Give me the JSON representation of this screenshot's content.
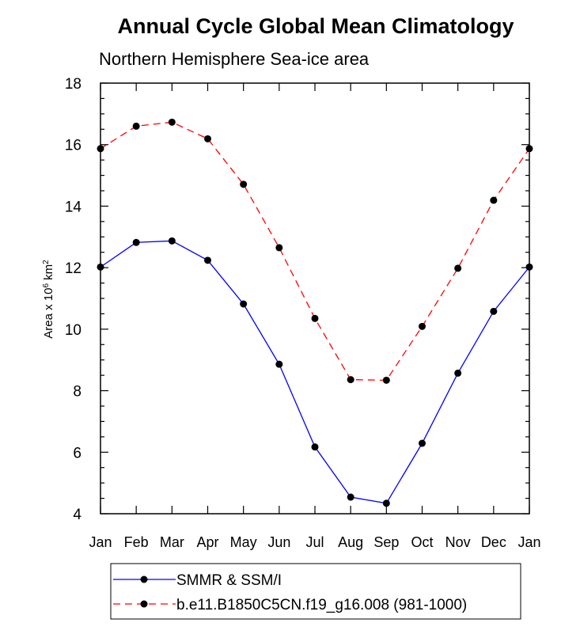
{
  "chart_data": {
    "type": "line",
    "title": "Annual Cycle Global Mean Climatology",
    "subtitle": "Northern Hemisphere Sea-ice area",
    "ylabel_prefix": "Area x 10",
    "ylabel_exp1": "6",
    "ylabel_unit": " km",
    "ylabel_exp2": "2",
    "xlabel": "",
    "categories": [
      "Jan",
      "Feb",
      "Mar",
      "Apr",
      "May",
      "Jun",
      "Jul",
      "Aug",
      "Sep",
      "Oct",
      "Nov",
      "Dec",
      "Jan"
    ],
    "ylim": [
      4,
      18
    ],
    "yticks": [
      4,
      6,
      8,
      10,
      12,
      14,
      16,
      18
    ],
    "series": [
      {
        "name": "SMMR & SSM/I",
        "color": "#0000ff",
        "dash": "solid",
        "values": [
          12.02,
          12.82,
          12.87,
          12.24,
          10.82,
          8.86,
          6.17,
          4.54,
          4.34,
          6.29,
          8.57,
          10.58,
          12.02
        ]
      },
      {
        "name": "b.e11.B1850C5CN.f19_g16.008 (981-1000)",
        "color": "#ff0000",
        "dash": "dashed",
        "values": [
          15.87,
          16.6,
          16.73,
          16.19,
          14.71,
          12.65,
          10.35,
          8.36,
          8.34,
          10.09,
          11.98,
          14.19,
          15.87
        ]
      }
    ],
    "legend_position": "bottom"
  }
}
